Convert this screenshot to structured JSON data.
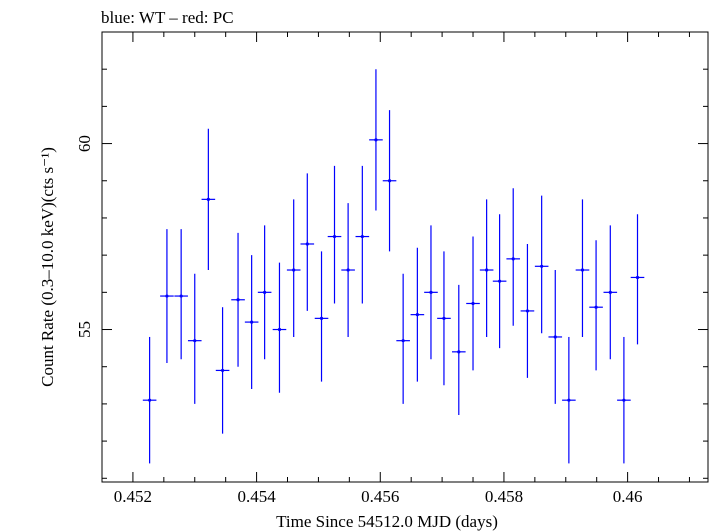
{
  "chart_data": {
    "type": "scatter",
    "title": "blue: WT – red: PC",
    "xlabel": "Time Since 54512.0 MJD (days)",
    "ylabel": "Count Rate (0.3–10.0 keV)(cts s⁻¹)",
    "xlim": [
      0.4515,
      0.4613
    ],
    "ylim": [
      50.9,
      63.0
    ],
    "x_ticks": [
      {
        "value": 0.452,
        "label": "0.452"
      },
      {
        "value": 0.454,
        "label": "0.454"
      },
      {
        "value": 0.456,
        "label": "0.456"
      },
      {
        "value": 0.458,
        "label": "0.458"
      },
      {
        "value": 0.46,
        "label": "0.46"
      }
    ],
    "y_ticks": [
      {
        "value": 55,
        "label": "55"
      },
      {
        "value": 60,
        "label": "60"
      }
    ],
    "grid": false,
    "series": [
      {
        "color": "#0000ff",
        "x_error": 0.00011,
        "points": [
          {
            "x": 0.45227,
            "y": 53.1,
            "y_lo": 51.4,
            "y_hi": 54.8
          },
          {
            "x": 0.45255,
            "y": 55.9,
            "y_lo": 54.1,
            "y_hi": 57.7
          },
          {
            "x": 0.45278,
            "y": 55.9,
            "y_lo": 54.2,
            "y_hi": 57.7
          },
          {
            "x": 0.453,
            "y": 54.7,
            "y_lo": 53.0,
            "y_hi": 56.5
          },
          {
            "x": 0.45322,
            "y": 58.5,
            "y_lo": 56.6,
            "y_hi": 60.4
          },
          {
            "x": 0.45345,
            "y": 53.9,
            "y_lo": 52.2,
            "y_hi": 55.6
          },
          {
            "x": 0.4537,
            "y": 55.8,
            "y_lo": 54.0,
            "y_hi": 57.6
          },
          {
            "x": 0.45392,
            "y": 55.2,
            "y_lo": 53.4,
            "y_hi": 57.0
          },
          {
            "x": 0.45413,
            "y": 56.0,
            "y_lo": 54.2,
            "y_hi": 57.8
          },
          {
            "x": 0.45437,
            "y": 55.0,
            "y_lo": 53.3,
            "y_hi": 56.8
          },
          {
            "x": 0.4546,
            "y": 56.6,
            "y_lo": 54.8,
            "y_hi": 58.5
          },
          {
            "x": 0.45482,
            "y": 57.3,
            "y_lo": 55.5,
            "y_hi": 59.2
          },
          {
            "x": 0.45505,
            "y": 55.3,
            "y_lo": 53.6,
            "y_hi": 57.1
          },
          {
            "x": 0.45526,
            "y": 57.5,
            "y_lo": 55.7,
            "y_hi": 59.4
          },
          {
            "x": 0.45548,
            "y": 56.6,
            "y_lo": 54.8,
            "y_hi": 58.4
          },
          {
            "x": 0.45571,
            "y": 57.5,
            "y_lo": 55.7,
            "y_hi": 59.4
          },
          {
            "x": 0.45593,
            "y": 60.1,
            "y_lo": 58.2,
            "y_hi": 62.0
          },
          {
            "x": 0.45615,
            "y": 59.0,
            "y_lo": 57.1,
            "y_hi": 60.9
          },
          {
            "x": 0.45637,
            "y": 54.7,
            "y_lo": 53.0,
            "y_hi": 56.5
          },
          {
            "x": 0.4566,
            "y": 55.4,
            "y_lo": 53.6,
            "y_hi": 57.2
          },
          {
            "x": 0.45682,
            "y": 56.0,
            "y_lo": 54.2,
            "y_hi": 57.8
          },
          {
            "x": 0.45703,
            "y": 55.3,
            "y_lo": 53.5,
            "y_hi": 57.1
          },
          {
            "x": 0.45727,
            "y": 54.4,
            "y_lo": 52.7,
            "y_hi": 56.2
          },
          {
            "x": 0.4575,
            "y": 55.7,
            "y_lo": 53.9,
            "y_hi": 57.5
          },
          {
            "x": 0.45772,
            "y": 56.6,
            "y_lo": 54.8,
            "y_hi": 58.5
          },
          {
            "x": 0.45793,
            "y": 56.3,
            "y_lo": 54.5,
            "y_hi": 58.1
          },
          {
            "x": 0.45815,
            "y": 56.9,
            "y_lo": 55.1,
            "y_hi": 58.8
          },
          {
            "x": 0.45838,
            "y": 55.5,
            "y_lo": 53.7,
            "y_hi": 57.3
          },
          {
            "x": 0.45861,
            "y": 56.7,
            "y_lo": 54.9,
            "y_hi": 58.6
          },
          {
            "x": 0.45883,
            "y": 54.8,
            "y_lo": 53.0,
            "y_hi": 56.6
          },
          {
            "x": 0.45905,
            "y": 53.1,
            "y_lo": 51.4,
            "y_hi": 54.8
          },
          {
            "x": 0.45927,
            "y": 56.6,
            "y_lo": 54.8,
            "y_hi": 58.5
          },
          {
            "x": 0.45949,
            "y": 55.6,
            "y_lo": 53.9,
            "y_hi": 57.4
          },
          {
            "x": 0.45972,
            "y": 56.0,
            "y_lo": 54.2,
            "y_hi": 57.8
          },
          {
            "x": 0.45994,
            "y": 53.1,
            "y_lo": 51.4,
            "y_hi": 54.8
          },
          {
            "x": 0.46016,
            "y": 56.4,
            "y_lo": 54.6,
            "y_hi": 58.1
          }
        ]
      }
    ]
  }
}
